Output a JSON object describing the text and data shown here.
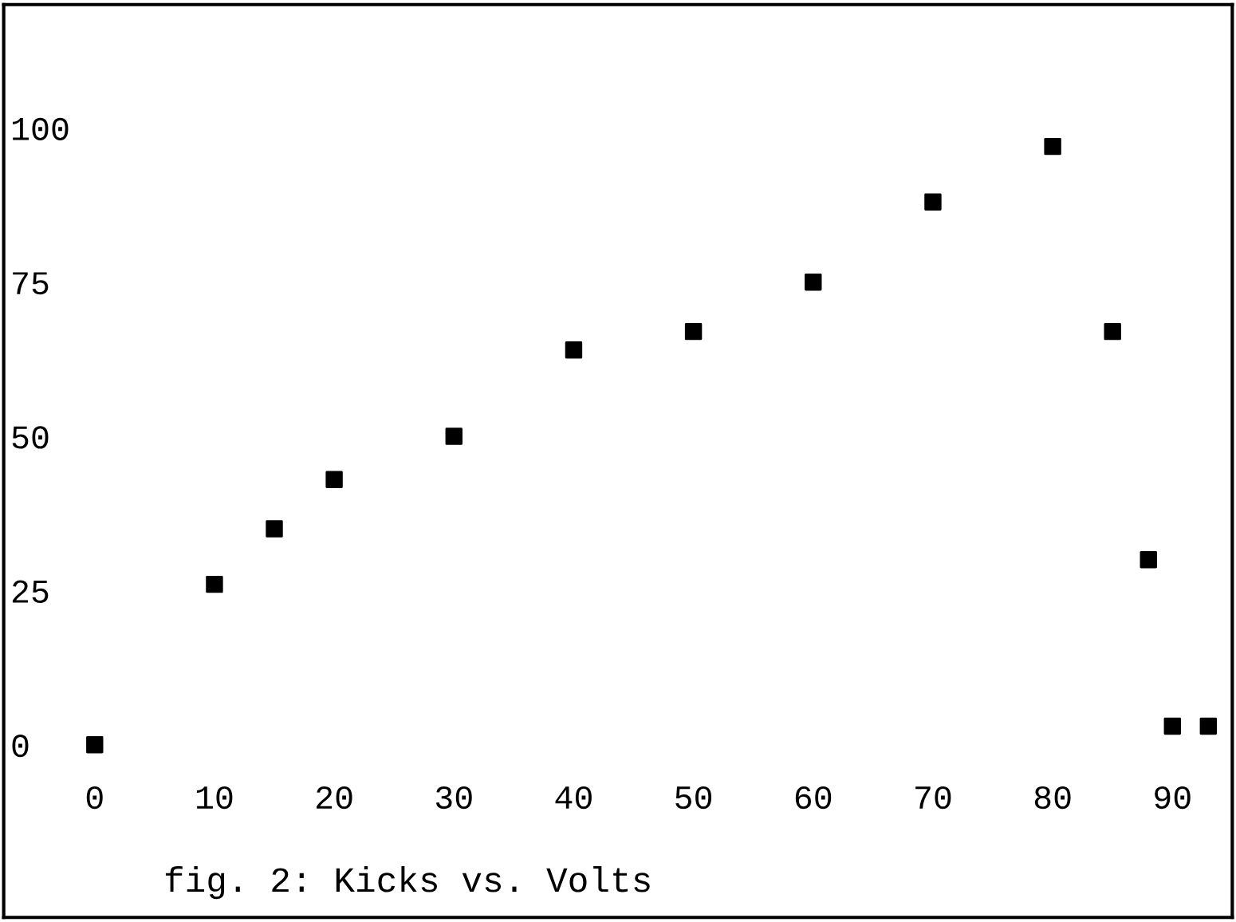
{
  "chart_data": {
    "type": "scatter",
    "x": [
      0,
      10,
      15,
      20,
      30,
      40,
      50,
      60,
      70,
      80,
      85,
      88,
      90,
      93
    ],
    "values": [
      0,
      26,
      35,
      43,
      50,
      64,
      67,
      75,
      88,
      97,
      67,
      30,
      3,
      3
    ],
    "color": "#000000",
    "marker": "square",
    "xlim": [
      -7.6,
      95
    ],
    "ylim": [
      -28,
      120
    ],
    "xticks": [
      0,
      10,
      20,
      30,
      40,
      50,
      60,
      70,
      80,
      90
    ],
    "yticks": [
      0,
      25,
      50,
      75,
      100
    ],
    "grid": false,
    "annotations": [
      "fig. 2: Kicks vs. Volts"
    ]
  }
}
